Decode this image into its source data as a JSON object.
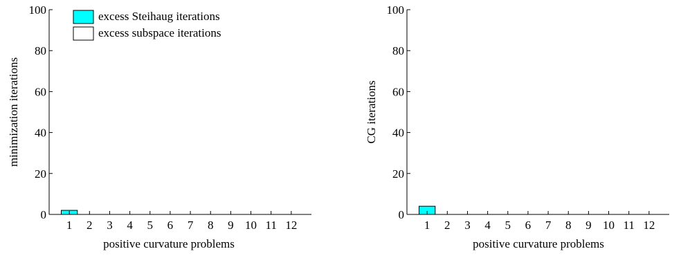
{
  "legend": {
    "items": [
      {
        "label": "excess Steihaug iterations",
        "color": "#00FFFF"
      },
      {
        "label": "excess subspace iterations",
        "color": "#FFFFFF"
      }
    ]
  },
  "chart_data": [
    {
      "type": "bar",
      "categories": [
        "1",
        "2",
        "3",
        "4",
        "5",
        "6",
        "7",
        "8",
        "9",
        "10",
        "11",
        "12"
      ],
      "series": [
        {
          "name": "excess Steihaug iterations",
          "color": "#00FFFF",
          "values": [
            2,
            0,
            0,
            0,
            0,
            0,
            0,
            0,
            0,
            0,
            0,
            0
          ]
        },
        {
          "name": "excess subspace iterations",
          "color": "#FFFFFF",
          "values": [
            0,
            0,
            0,
            0,
            0,
            0,
            0,
            0,
            0,
            0,
            0,
            0
          ]
        }
      ],
      "xlabel": "positive curvature problems",
      "ylabel": "minimization iterations",
      "ylim": [
        0,
        100
      ],
      "yticks": [
        0,
        20,
        40,
        60,
        80,
        100
      ],
      "legend_position": "top-left",
      "grid": false
    },
    {
      "type": "bar",
      "categories": [
        "1",
        "2",
        "3",
        "4",
        "5",
        "6",
        "7",
        "8",
        "9",
        "10",
        "11",
        "12"
      ],
      "series": [
        {
          "name": "excess Steihaug iterations",
          "color": "#00FFFF",
          "values": [
            4,
            0,
            0,
            0,
            0,
            0,
            0,
            0,
            0,
            0,
            0,
            0
          ]
        },
        {
          "name": "excess subspace iterations",
          "color": "#FFFFFF",
          "values": [
            0,
            0,
            0,
            0,
            0,
            0,
            0,
            0,
            0,
            0,
            0,
            0
          ]
        }
      ],
      "xlabel": "positive curvature problems",
      "ylabel": "CG iterations",
      "ylim": [
        0,
        100
      ],
      "yticks": [
        0,
        20,
        40,
        60,
        80,
        100
      ],
      "grid": false
    }
  ]
}
